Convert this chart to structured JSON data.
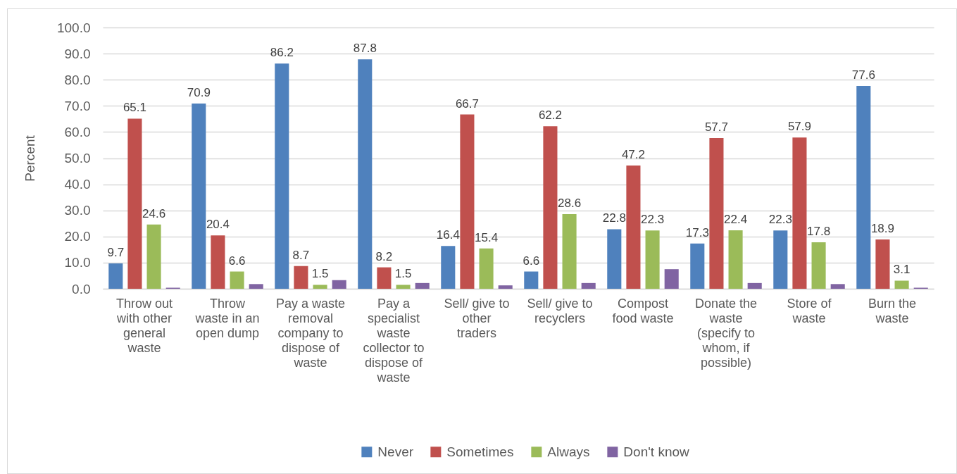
{
  "chart_data": {
    "type": "bar",
    "ylabel": "Percent",
    "categories": [
      "Throw out with other general waste",
      "Throw waste in an open dump",
      "Pay a waste removal company to dispose of waste",
      "Pay a specialist waste collector to dispose of waste",
      "Sell/ give to other traders",
      "Sell/ give to recyclers",
      "Compost food waste",
      "Donate the waste (specify to whom, if possible)",
      "Store of waste",
      "Burn the waste"
    ],
    "series": [
      {
        "name": "Never",
        "color": "#4f81bd",
        "values": [
          9.7,
          70.9,
          86.2,
          87.8,
          16.4,
          6.6,
          22.8,
          17.3,
          22.3,
          77.6
        ],
        "value_labels": [
          "9.7",
          "70.9",
          "86.2",
          "87.8",
          "16.4",
          "6.6",
          "22.8",
          "17.3",
          "22.3",
          "77.6"
        ]
      },
      {
        "name": "Sometimes",
        "color": "#c0504d",
        "values": [
          65.1,
          20.4,
          8.7,
          8.2,
          66.7,
          62.2,
          47.2,
          57.7,
          57.9,
          18.9
        ],
        "value_labels": [
          "65.1",
          "20.4",
          "8.7",
          "8.2",
          "66.7",
          "62.2",
          "47.2",
          "57.7",
          "57.9",
          "18.9"
        ]
      },
      {
        "name": "Always",
        "color": "#9bbb59",
        "values": [
          24.6,
          6.6,
          1.5,
          1.5,
          15.4,
          28.6,
          22.3,
          22.4,
          17.8,
          3.1
        ],
        "value_labels": [
          "24.6",
          "6.6",
          "1.5",
          "1.5",
          "15.4",
          "28.6",
          "22.3",
          "22.4",
          "17.8",
          "3.1"
        ]
      },
      {
        "name": "Don't know",
        "color": "#8064a2",
        "values": [
          0.4,
          1.8,
          3.3,
          2.2,
          1.3,
          2.2,
          7.5,
          2.2,
          1.8,
          0.4
        ]
      }
    ],
    "ylim": [
      0,
      100
    ],
    "yticks": [
      {
        "value": 0,
        "label": "0.0"
      },
      {
        "value": 10,
        "label": "10.0"
      },
      {
        "value": 20,
        "label": "20.0"
      },
      {
        "value": 30,
        "label": "30.0"
      },
      {
        "value": 40,
        "label": "40.0"
      },
      {
        "value": 50,
        "label": "50.0"
      },
      {
        "value": 60,
        "label": "60.0"
      },
      {
        "value": 70,
        "label": "70.0"
      },
      {
        "value": 80,
        "label": "80.0"
      },
      {
        "value": 90,
        "label": "90.0"
      },
      {
        "value": 100,
        "label": "100.0"
      }
    ],
    "grid": "y",
    "legend": "bottom"
  }
}
